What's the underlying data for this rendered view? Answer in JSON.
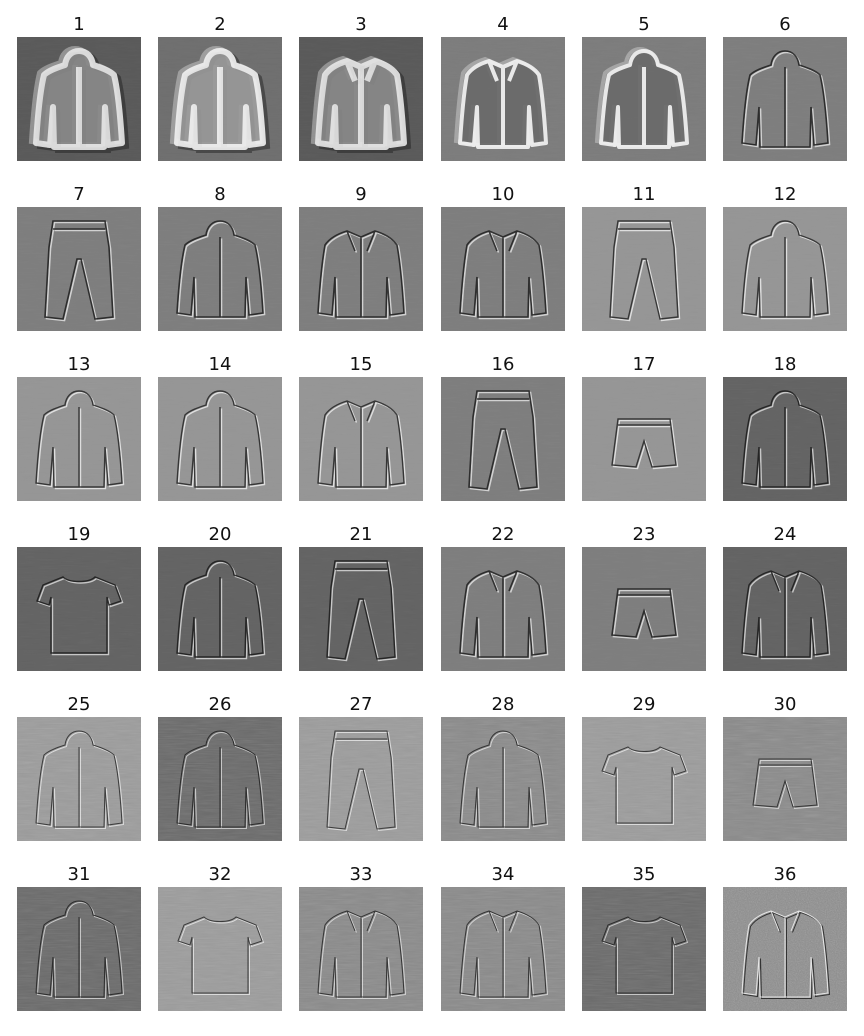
{
  "panels": [
    {
      "label": "1",
      "garment": "hoodie",
      "style": "blend-dark"
    },
    {
      "label": "2",
      "garment": "hoodie",
      "style": "blend-light"
    },
    {
      "label": "3",
      "garment": "jacket",
      "style": "blend-dark"
    },
    {
      "label": "4",
      "garment": "jacket",
      "style": "blend-mid"
    },
    {
      "label": "5",
      "garment": "hoodie",
      "style": "blend-mid"
    },
    {
      "label": "6",
      "garment": "hoodie",
      "style": "edge-mid"
    },
    {
      "label": "7",
      "garment": "pants",
      "style": "edge-mid"
    },
    {
      "label": "8",
      "garment": "hoodie",
      "style": "edge-mid"
    },
    {
      "label": "9",
      "garment": "jacket",
      "style": "edge-mid"
    },
    {
      "label": "10",
      "garment": "jacket",
      "style": "edge-mid"
    },
    {
      "label": "11",
      "garment": "pants",
      "style": "edge-light"
    },
    {
      "label": "12",
      "garment": "hoodie",
      "style": "edge-light"
    },
    {
      "label": "13",
      "garment": "hoodie",
      "style": "edge-light"
    },
    {
      "label": "14",
      "garment": "hoodie",
      "style": "edge-light"
    },
    {
      "label": "15",
      "garment": "jacket",
      "style": "edge-light"
    },
    {
      "label": "16",
      "garment": "pants",
      "style": "edge-mid"
    },
    {
      "label": "17",
      "garment": "shorts",
      "style": "edge-light"
    },
    {
      "label": "18",
      "garment": "hoodie",
      "style": "edge-dark"
    },
    {
      "label": "19",
      "garment": "tshirt",
      "style": "edge-dark"
    },
    {
      "label": "20",
      "garment": "hoodie",
      "style": "edge-dark"
    },
    {
      "label": "21",
      "garment": "pants",
      "style": "edge-dark"
    },
    {
      "label": "22",
      "garment": "jacket",
      "style": "edge-mid"
    },
    {
      "label": "23",
      "garment": "shorts",
      "style": "edge-mid"
    },
    {
      "label": "24",
      "garment": "jacket",
      "style": "edge-dark"
    },
    {
      "label": "25",
      "garment": "hoodie",
      "style": "noise-light"
    },
    {
      "label": "26",
      "garment": "hoodie",
      "style": "noise-dark"
    },
    {
      "label": "27",
      "garment": "pants",
      "style": "noise-light"
    },
    {
      "label": "28",
      "garment": "hoodie",
      "style": "noise-mid"
    },
    {
      "label": "29",
      "garment": "tshirt",
      "style": "noise-light"
    },
    {
      "label": "30",
      "garment": "shorts",
      "style": "noise-mid"
    },
    {
      "label": "31",
      "garment": "hoodie",
      "style": "noise-dark"
    },
    {
      "label": "32",
      "garment": "tshirt",
      "style": "noise-light"
    },
    {
      "label": "33",
      "garment": "jacket",
      "style": "noise-mid"
    },
    {
      "label": "34",
      "garment": "jacket",
      "style": "noise-mid"
    },
    {
      "label": "35",
      "garment": "tshirt",
      "style": "noise-dark"
    },
    {
      "label": "36",
      "garment": "jacket",
      "style": "speckle"
    }
  ]
}
